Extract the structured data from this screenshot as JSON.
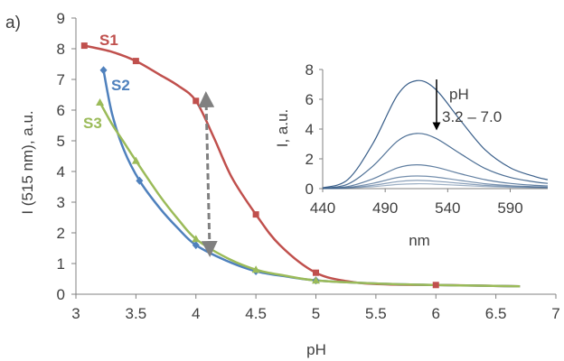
{
  "chart_data": [
    {
      "type": "line",
      "panel_label": "a)",
      "xlabel": "pH",
      "ylabel": "I (515 nm), a.u.",
      "xlim": [
        3,
        7
      ],
      "ylim": [
        0,
        9
      ],
      "x_ticks": [
        "3",
        "3.5",
        "4",
        "4.5",
        "5",
        "5.5",
        "6",
        "6.5",
        "7"
      ],
      "y_ticks": [
        "0",
        "1",
        "2",
        "3",
        "4",
        "5",
        "6",
        "7",
        "8",
        "9"
      ],
      "grid": false,
      "annotation": "double-headed dashed arrow at pH 4.1 spanning I 1.3 to 6.6",
      "series": [
        {
          "name": "S1",
          "color": "#c0504d",
          "marker": "square",
          "x": [
            3.07,
            3.5,
            4.0,
            4.5,
            5.0,
            6.0
          ],
          "y": [
            8.1,
            7.6,
            6.3,
            2.6,
            0.7,
            0.3
          ],
          "curve_x": [
            3.07,
            3.3,
            3.5,
            3.7,
            3.85,
            4.0,
            4.15,
            4.3,
            4.5,
            4.7,
            5.0,
            5.3,
            5.6,
            6.0,
            6.7
          ],
          "curve_y": [
            8.1,
            7.9,
            7.6,
            7.15,
            6.8,
            6.3,
            5.1,
            3.8,
            2.6,
            1.6,
            0.7,
            0.4,
            0.32,
            0.3,
            0.26
          ]
        },
        {
          "name": "S2",
          "color": "#4f81bd",
          "marker": "diamond",
          "x": [
            3.23,
            3.53,
            4.0,
            4.5,
            5.0
          ],
          "y": [
            7.3,
            3.7,
            1.6,
            0.75,
            0.45
          ],
          "curve_x": [
            3.23,
            3.3,
            3.4,
            3.53,
            3.7,
            3.85,
            4.0,
            4.25,
            4.5,
            4.75,
            5.0,
            5.5,
            6.0,
            6.7
          ],
          "curve_y": [
            7.3,
            5.9,
            4.7,
            3.7,
            2.8,
            2.15,
            1.6,
            1.1,
            0.75,
            0.58,
            0.45,
            0.35,
            0.3,
            0.26
          ]
        },
        {
          "name": "S3",
          "color": "#9bbb59",
          "marker": "triangle",
          "x": [
            3.2,
            3.5,
            4.0,
            4.5,
            5.0
          ],
          "y": [
            6.25,
            4.35,
            1.8,
            0.8,
            0.45
          ],
          "curve_x": [
            3.2,
            3.3,
            3.4,
            3.5,
            3.7,
            3.85,
            4.0,
            4.25,
            4.5,
            4.75,
            5.0,
            5.5,
            6.0,
            6.7
          ],
          "curve_y": [
            6.25,
            5.55,
            4.95,
            4.35,
            3.2,
            2.45,
            1.8,
            1.2,
            0.8,
            0.6,
            0.45,
            0.35,
            0.3,
            0.26
          ]
        }
      ]
    },
    {
      "type": "line",
      "xlabel": "nm",
      "ylabel": "I, a.u.",
      "xlim": [
        440,
        620
      ],
      "ylim": [
        0,
        8
      ],
      "x_ticks": [
        "440",
        "490",
        "540",
        "590"
      ],
      "y_ticks": [
        "0",
        "2",
        "4",
        "6",
        "8"
      ],
      "grid": false,
      "annotation": "pH",
      "annotation_range": "3.2 – 7.0",
      "series_color": "#3a5f8a",
      "series": [
        {
          "x": [
            440,
            460,
            480,
            500,
            515,
            530,
            550,
            570,
            590,
            610,
            620
          ],
          "y": [
            0.05,
            0.6,
            3.0,
            6.3,
            7.25,
            6.7,
            4.6,
            2.6,
            1.4,
            0.8,
            0.6
          ]
        },
        {
          "x": [
            440,
            460,
            480,
            500,
            515,
            530,
            550,
            570,
            590,
            610,
            620
          ],
          "y": [
            0.03,
            0.3,
            1.5,
            3.2,
            3.7,
            3.4,
            2.35,
            1.35,
            0.75,
            0.45,
            0.35
          ]
        },
        {
          "x": [
            440,
            460,
            480,
            500,
            515,
            530,
            550,
            570,
            590,
            610,
            620
          ],
          "y": [
            0.02,
            0.14,
            0.65,
            1.4,
            1.6,
            1.45,
            1.0,
            0.6,
            0.35,
            0.22,
            0.18
          ]
        },
        {
          "x": [
            440,
            460,
            480,
            500,
            515,
            530,
            550,
            570,
            590,
            610,
            620
          ],
          "y": [
            0.01,
            0.08,
            0.35,
            0.75,
            0.85,
            0.78,
            0.55,
            0.33,
            0.2,
            0.13,
            0.1
          ]
        },
        {
          "x": [
            440,
            460,
            480,
            500,
            515,
            530,
            550,
            570,
            590,
            610,
            620
          ],
          "y": [
            0.01,
            0.05,
            0.22,
            0.47,
            0.55,
            0.5,
            0.36,
            0.22,
            0.14,
            0.09,
            0.07
          ]
        },
        {
          "x": [
            440,
            460,
            480,
            500,
            515,
            530,
            550,
            570,
            590,
            610,
            620
          ],
          "y": [
            0.0,
            0.03,
            0.13,
            0.28,
            0.33,
            0.3,
            0.22,
            0.14,
            0.09,
            0.06,
            0.05
          ]
        }
      ]
    }
  ]
}
